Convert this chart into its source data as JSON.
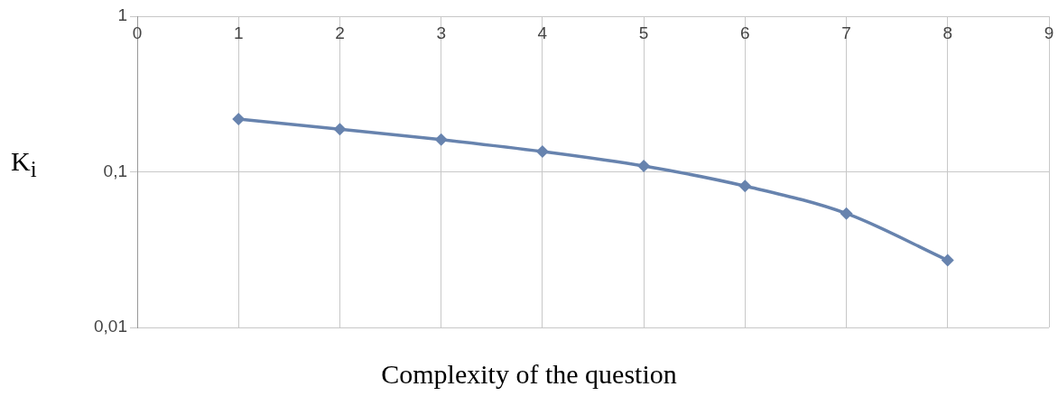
{
  "chart_data": {
    "type": "line",
    "xlabel": "Complexity of the question",
    "ylabel": "K$_{i}$",
    "x": [
      1,
      2,
      3,
      4,
      5,
      6,
      7,
      8
    ],
    "series": [
      {
        "color": "#6783ae",
        "values": [
          0.218,
          0.188,
          0.161,
          0.135,
          0.109,
          0.081,
          0.054,
          0.027
        ]
      }
    ],
    "xlim": [
      0,
      9
    ],
    "xticks": [
      0,
      1,
      2,
      3,
      4,
      5,
      6,
      7,
      8,
      9
    ],
    "ylim": [
      0.01,
      1
    ],
    "yticks": [
      1,
      {
        "value": 0.1,
        "label": "0,1"
      },
      {
        "value": 0.01,
        "label": "0,01"
      }
    ],
    "log": "y",
    "grid": true,
    "legend": false,
    "marker": "diamond",
    "line_style": "solid"
  }
}
